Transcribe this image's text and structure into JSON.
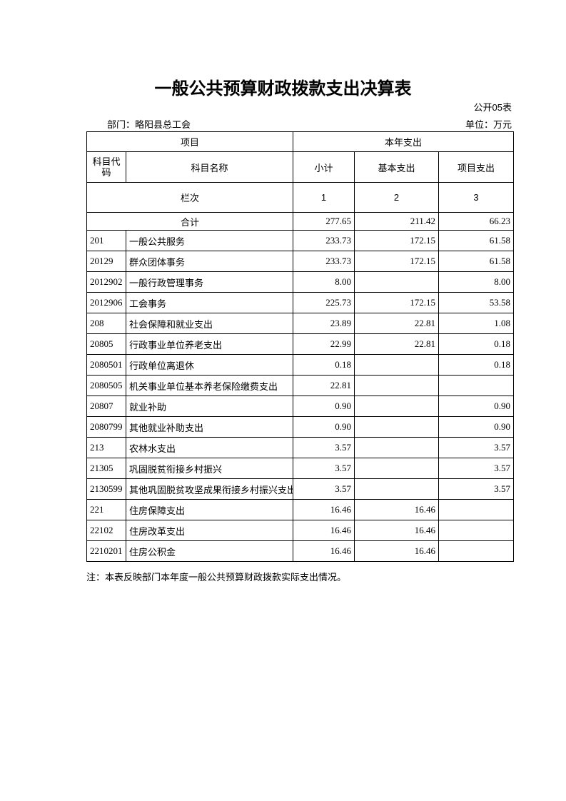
{
  "title": "一般公共预算财政拨款支出决算表",
  "form_no": "公开05表",
  "department": "部门：略阳县总工会",
  "unit": "单位：万元",
  "headers": {
    "item": "项目",
    "current_year": "本年支出",
    "code": "科目代码",
    "name": "科目名称",
    "subtotal": "小计",
    "basic": "基本支出",
    "project": "项目支出",
    "column_order": "栏次",
    "col1": "1",
    "col2": "2",
    "col3": "3"
  },
  "total": {
    "label": "合计",
    "subtotal": "277.65",
    "basic": "211.42",
    "project": "66.23"
  },
  "rows": [
    {
      "code": "201",
      "name": "一般公共服务",
      "subtotal": "233.73",
      "basic": "172.15",
      "project": "61.58"
    },
    {
      "code": "20129",
      "name": "群众团体事务",
      "subtotal": "233.73",
      "basic": "172.15",
      "project": "61.58"
    },
    {
      "code": "2012902",
      "name": "一般行政管理事务",
      "subtotal": "8.00",
      "basic": "",
      "project": "8.00"
    },
    {
      "code": "2012906",
      "name": "工会事务",
      "subtotal": "225.73",
      "basic": "172.15",
      "project": "53.58"
    },
    {
      "code": "208",
      "name": "社会保障和就业支出",
      "subtotal": "23.89",
      "basic": "22.81",
      "project": "1.08"
    },
    {
      "code": "20805",
      "name": "行政事业单位养老支出",
      "subtotal": "22.99",
      "basic": "22.81",
      "project": "0.18"
    },
    {
      "code": "2080501",
      "name": "行政单位离退休",
      "subtotal": "0.18",
      "basic": "",
      "project": "0.18"
    },
    {
      "code": "2080505",
      "name": "机关事业单位基本养老保险缴费支出",
      "subtotal": "22.81",
      "basic": "",
      "project": ""
    },
    {
      "code": "20807",
      "name": "就业补助",
      "subtotal": "0.90",
      "basic": "",
      "project": "0.90"
    },
    {
      "code": "2080799",
      "name": "其他就业补助支出",
      "subtotal": "0.90",
      "basic": "",
      "project": "0.90"
    },
    {
      "code": "213",
      "name": "农林水支出",
      "subtotal": "3.57",
      "basic": "",
      "project": "3.57"
    },
    {
      "code": "21305",
      "name": "巩固脱贫衔接乡村振兴",
      "subtotal": "3.57",
      "basic": "",
      "project": "3.57"
    },
    {
      "code": "2130599",
      "name": "其他巩固脱贫攻坚成果衔接乡村振兴支出",
      "subtotal": "3.57",
      "basic": "",
      "project": "3.57"
    },
    {
      "code": "221",
      "name": "住房保障支出",
      "subtotal": "16.46",
      "basic": "16.46",
      "project": ""
    },
    {
      "code": "22102",
      "name": "住房改革支出",
      "subtotal": "16.46",
      "basic": "16.46",
      "project": ""
    },
    {
      "code": "2210201",
      "name": "住房公积金",
      "subtotal": "16.46",
      "basic": "16.46",
      "project": ""
    }
  ],
  "note": "注：本表反映部门本年度一般公共预算财政拨款实际支出情况。"
}
